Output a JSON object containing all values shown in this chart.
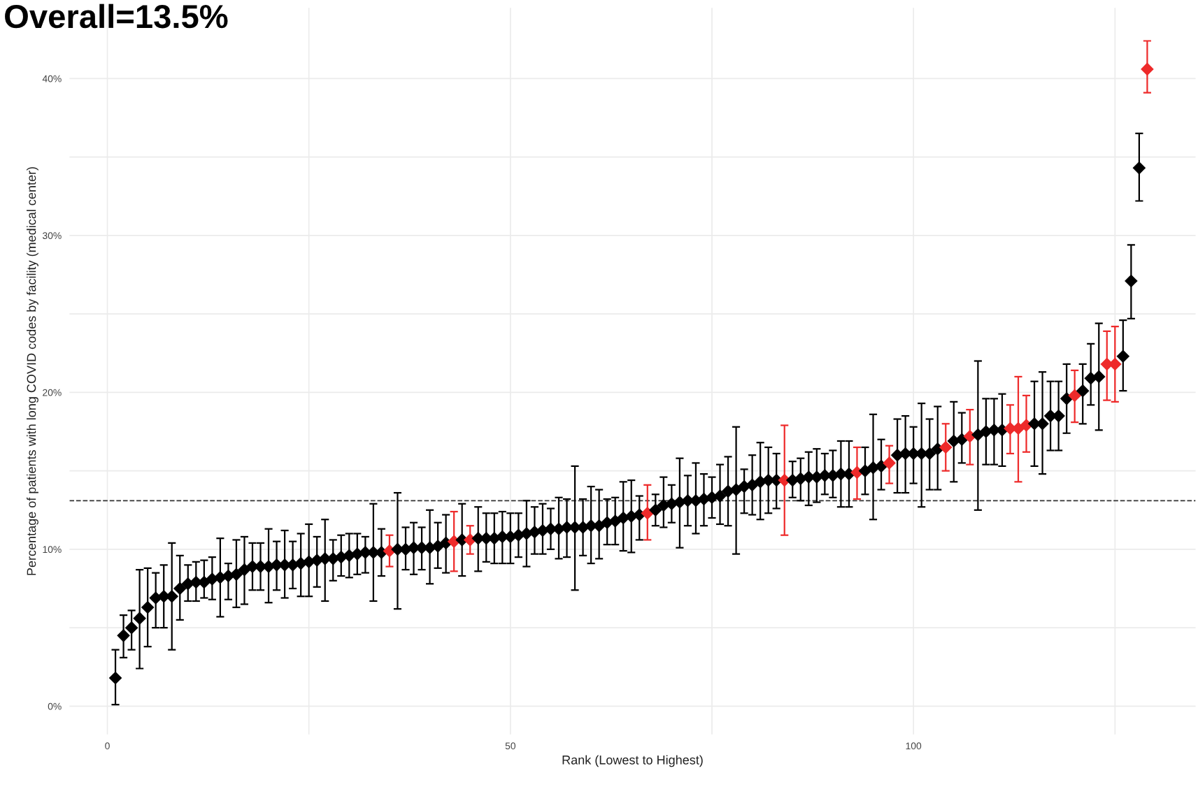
{
  "chart_data": {
    "type": "scatter",
    "title": "Overall=13.5%",
    "xlabel": "Rank (Lowest to Highest)",
    "ylabel": "Percentage of patients with long COVID codes by facility (medical center)",
    "x": [
      1,
      2,
      3,
      4,
      5,
      6,
      7,
      8,
      9,
      10,
      11,
      12,
      13,
      14,
      15,
      16,
      17,
      18,
      19,
      20,
      21,
      22,
      23,
      24,
      25,
      26,
      27,
      28,
      29,
      30,
      31,
      32,
      33,
      34,
      35,
      36,
      37,
      38,
      39,
      40,
      41,
      42,
      43,
      44,
      45,
      46,
      47,
      48,
      49,
      50,
      51,
      52,
      53,
      54,
      55,
      56,
      57,
      58,
      59,
      60,
      61,
      62,
      63,
      64,
      65,
      66,
      67,
      68,
      69,
      70,
      71,
      72,
      73,
      74,
      75,
      76,
      77,
      78,
      79,
      80,
      81,
      82,
      83,
      84,
      85,
      86,
      87,
      88,
      89,
      90,
      91,
      92,
      93,
      94,
      95,
      96,
      97,
      98,
      99,
      100,
      101,
      102,
      103,
      104,
      105,
      106,
      107,
      108,
      109,
      110,
      111,
      112,
      113,
      114,
      115,
      116,
      117,
      118,
      119,
      120,
      121,
      122,
      123,
      124,
      125,
      126,
      127,
      128,
      129
    ],
    "series": [
      {
        "values": [
          1.8,
          4.5,
          5.0,
          5.6,
          6.3,
          6.9,
          7.0,
          7.0,
          7.5,
          7.8,
          7.9,
          7.9,
          8.1,
          8.2,
          8.3,
          8.4,
          8.7,
          8.9,
          8.9,
          8.9,
          9.0,
          9.0,
          9.0,
          9.1,
          9.2,
          9.3,
          9.4,
          9.4,
          9.5,
          9.6,
          9.7,
          9.8,
          9.8,
          9.8,
          9.9,
          10.0,
          10.0,
          10.1,
          10.1,
          10.1,
          10.2,
          10.4,
          10.5,
          10.6,
          10.6,
          10.7,
          10.7,
          10.7,
          10.8,
          10.8,
          10.9,
          11.0,
          11.1,
          11.2,
          11.3,
          11.3,
          11.4,
          11.4,
          11.4,
          11.5,
          11.5,
          11.7,
          11.8,
          12.0,
          12.1,
          12.2,
          12.3,
          12.5,
          12.8,
          12.9,
          13.0,
          13.1,
          13.1,
          13.2,
          13.3,
          13.4,
          13.7,
          13.8,
          14.0,
          14.1,
          14.3,
          14.4,
          14.4,
          14.4,
          14.4,
          14.5,
          14.6,
          14.6,
          14.7,
          14.7,
          14.8,
          14.8,
          14.9,
          15.0,
          15.2,
          15.3,
          15.5,
          16.0,
          16.1,
          16.1,
          16.1,
          16.1,
          16.4,
          16.5,
          16.9,
          17.0,
          17.2,
          17.3,
          17.5,
          17.6,
          17.6,
          17.7,
          17.7,
          17.9,
          18.0,
          18.0,
          18.5,
          18.5,
          19.6,
          19.8,
          20.1,
          20.9,
          21.0,
          21.8,
          21.8,
          22.3,
          27.1,
          34.3,
          40.6
        ],
        "colors": [
          "#000000",
          "#000000",
          "#000000",
          "#000000",
          "#000000",
          "#000000",
          "#000000",
          "#000000",
          "#000000",
          "#000000",
          "#000000",
          "#000000",
          "#000000",
          "#000000",
          "#000000",
          "#000000",
          "#000000",
          "#000000",
          "#000000",
          "#000000",
          "#000000",
          "#000000",
          "#000000",
          "#000000",
          "#000000",
          "#000000",
          "#000000",
          "#000000",
          "#000000",
          "#000000",
          "#000000",
          "#000000",
          "#000000",
          "#000000",
          "#ee2a2a",
          "#000000",
          "#000000",
          "#000000",
          "#000000",
          "#000000",
          "#000000",
          "#000000",
          "#ee2a2a",
          "#000000",
          "#ee2a2a",
          "#000000",
          "#000000",
          "#000000",
          "#000000",
          "#000000",
          "#000000",
          "#000000",
          "#000000",
          "#000000",
          "#000000",
          "#000000",
          "#000000",
          "#000000",
          "#000000",
          "#000000",
          "#000000",
          "#000000",
          "#000000",
          "#000000",
          "#000000",
          "#000000",
          "#ee2a2a",
          "#000000",
          "#000000",
          "#000000",
          "#000000",
          "#000000",
          "#000000",
          "#000000",
          "#000000",
          "#000000",
          "#000000",
          "#000000",
          "#000000",
          "#000000",
          "#000000",
          "#000000",
          "#000000",
          "#ee2a2a",
          "#000000",
          "#000000",
          "#000000",
          "#000000",
          "#000000",
          "#000000",
          "#000000",
          "#000000",
          "#ee2a2a",
          "#000000",
          "#000000",
          "#000000",
          "#ee2a2a",
          "#000000",
          "#000000",
          "#000000",
          "#000000",
          "#000000",
          "#000000",
          "#ee2a2a",
          "#000000",
          "#000000",
          "#ee2a2a",
          "#000000",
          "#000000",
          "#000000",
          "#000000",
          "#ee2a2a",
          "#ee2a2a",
          "#ee2a2a",
          "#000000",
          "#000000",
          "#000000",
          "#000000",
          "#000000",
          "#ee2a2a",
          "#000000",
          "#000000",
          "#000000",
          "#ee2a2a",
          "#ee2a2a",
          "#000000",
          "#000000",
          "#000000",
          "#ee2a2a"
        ],
        "errors": [
          [
            0.1,
            3.6
          ],
          [
            3.1,
            5.8
          ],
          [
            3.6,
            6.1
          ],
          [
            2.4,
            8.7
          ],
          [
            3.8,
            8.8
          ],
          [
            5.0,
            8.5
          ],
          [
            5.0,
            9.0
          ],
          [
            3.6,
            10.4
          ],
          [
            5.5,
            9.6
          ],
          [
            6.7,
            9.0
          ],
          [
            6.7,
            9.2
          ],
          [
            6.9,
            9.3
          ],
          [
            6.8,
            9.5
          ],
          [
            5.7,
            10.7
          ],
          [
            6.8,
            9.1
          ],
          [
            6.3,
            10.6
          ],
          [
            6.5,
            10.8
          ],
          [
            7.4,
            10.4
          ],
          [
            7.4,
            10.4
          ],
          [
            6.6,
            11.3
          ],
          [
            7.4,
            10.5
          ],
          [
            6.9,
            11.2
          ],
          [
            7.5,
            10.5
          ],
          [
            7.0,
            11.0
          ],
          [
            7.0,
            11.6
          ],
          [
            7.6,
            10.8
          ],
          [
            6.7,
            11.9
          ],
          [
            8.0,
            10.6
          ],
          [
            8.3,
            10.9
          ],
          [
            8.2,
            11.0
          ],
          [
            8.4,
            11.0
          ],
          [
            8.5,
            10.8
          ],
          [
            6.7,
            12.9
          ],
          [
            8.3,
            11.3
          ],
          [
            8.9,
            10.9
          ],
          [
            6.2,
            13.6
          ],
          [
            8.7,
            11.4
          ],
          [
            8.4,
            11.7
          ],
          [
            8.7,
            11.4
          ],
          [
            7.8,
            12.5
          ],
          [
            8.8,
            11.7
          ],
          [
            8.5,
            12.2
          ],
          [
            8.6,
            12.4
          ],
          [
            8.3,
            12.9
          ],
          [
            9.7,
            11.5
          ],
          [
            8.6,
            12.7
          ],
          [
            9.2,
            12.3
          ],
          [
            9.1,
            12.3
          ],
          [
            9.1,
            12.4
          ],
          [
            9.1,
            12.3
          ],
          [
            9.5,
            12.3
          ],
          [
            8.9,
            13.1
          ],
          [
            9.7,
            12.7
          ],
          [
            9.7,
            12.9
          ],
          [
            10.0,
            12.6
          ],
          [
            9.4,
            13.3
          ],
          [
            9.5,
            13.2
          ],
          [
            7.4,
            15.3
          ],
          [
            9.6,
            13.2
          ],
          [
            9.1,
            14.0
          ],
          [
            9.4,
            13.8
          ],
          [
            10.3,
            13.2
          ],
          [
            10.3,
            13.3
          ],
          [
            9.9,
            14.3
          ],
          [
            9.8,
            14.4
          ],
          [
            10.6,
            13.4
          ],
          [
            10.6,
            14.1
          ],
          [
            11.5,
            13.5
          ],
          [
            11.4,
            14.6
          ],
          [
            11.7,
            14.1
          ],
          [
            10.1,
            15.8
          ],
          [
            11.5,
            14.7
          ],
          [
            11.0,
            15.5
          ],
          [
            11.5,
            14.8
          ],
          [
            12.0,
            14.6
          ],
          [
            11.6,
            15.4
          ],
          [
            11.5,
            15.9
          ],
          [
            9.7,
            17.8
          ],
          [
            12.3,
            15.1
          ],
          [
            12.2,
            16.0
          ],
          [
            11.9,
            16.8
          ],
          [
            12.3,
            16.5
          ],
          [
            12.6,
            16.1
          ],
          [
            10.9,
            17.9
          ],
          [
            13.3,
            15.6
          ],
          [
            13.1,
            15.8
          ],
          [
            12.8,
            16.2
          ],
          [
            13.0,
            16.4
          ],
          [
            13.5,
            16.1
          ],
          [
            13.3,
            16.3
          ],
          [
            12.7,
            16.9
          ],
          [
            12.7,
            16.9
          ],
          [
            13.2,
            16.5
          ],
          [
            13.5,
            16.5
          ],
          [
            11.9,
            18.6
          ],
          [
            13.8,
            17.0
          ],
          [
            14.2,
            16.6
          ],
          [
            13.6,
            18.3
          ],
          [
            13.6,
            18.5
          ],
          [
            14.2,
            17.8
          ],
          [
            12.7,
            19.3
          ],
          [
            13.8,
            18.3
          ],
          [
            13.8,
            19.1
          ],
          [
            15.0,
            18.0
          ],
          [
            14.3,
            19.4
          ],
          [
            15.5,
            18.7
          ],
          [
            15.4,
            18.9
          ],
          [
            12.5,
            22.0
          ],
          [
            15.4,
            19.6
          ],
          [
            15.4,
            19.6
          ],
          [
            15.3,
            19.9
          ],
          [
            16.1,
            19.2
          ],
          [
            14.3,
            21.0
          ],
          [
            16.2,
            19.8
          ],
          [
            15.3,
            20.7
          ],
          [
            14.8,
            21.3
          ],
          [
            16.3,
            20.7
          ],
          [
            16.3,
            20.7
          ],
          [
            17.4,
            21.8
          ],
          [
            18.1,
            21.4
          ],
          [
            18.0,
            21.8
          ],
          [
            19.2,
            23.1
          ],
          [
            17.6,
            24.4
          ],
          [
            19.5,
            23.9
          ],
          [
            19.4,
            24.2
          ],
          [
            20.1,
            24.6
          ],
          [
            24.7,
            29.4
          ],
          [
            32.2,
            36.5
          ],
          [
            39.1,
            42.4
          ]
        ]
      }
    ],
    "marker": "diamond",
    "xlim": [
      -4.7,
      135
    ],
    "xticks": [
      0,
      {
        "value": 25,
        "label": null
      },
      50,
      {
        "value": 75,
        "label": null
      },
      100,
      {
        "value": 125,
        "label": null
      }
    ],
    "ylim": [
      -1.8,
      44.5
    ],
    "yticks": [
      {
        "value": 0,
        "label": "0%"
      },
      {
        "value": 5,
        "label": null
      },
      {
        "value": 10,
        "label": "10%"
      },
      {
        "value": 15,
        "label": null
      },
      {
        "value": 20,
        "label": "20%"
      },
      {
        "value": 25,
        "label": null
      },
      {
        "value": 30,
        "label": "30%"
      },
      {
        "value": 35,
        "label": null
      },
      {
        "value": 40,
        "label": "40%"
      }
    ],
    "grid": true,
    "ref_lines": [
      {
        "axis": "y",
        "value": 13.1,
        "color": "#333333",
        "line_style": "dashed"
      }
    ]
  }
}
